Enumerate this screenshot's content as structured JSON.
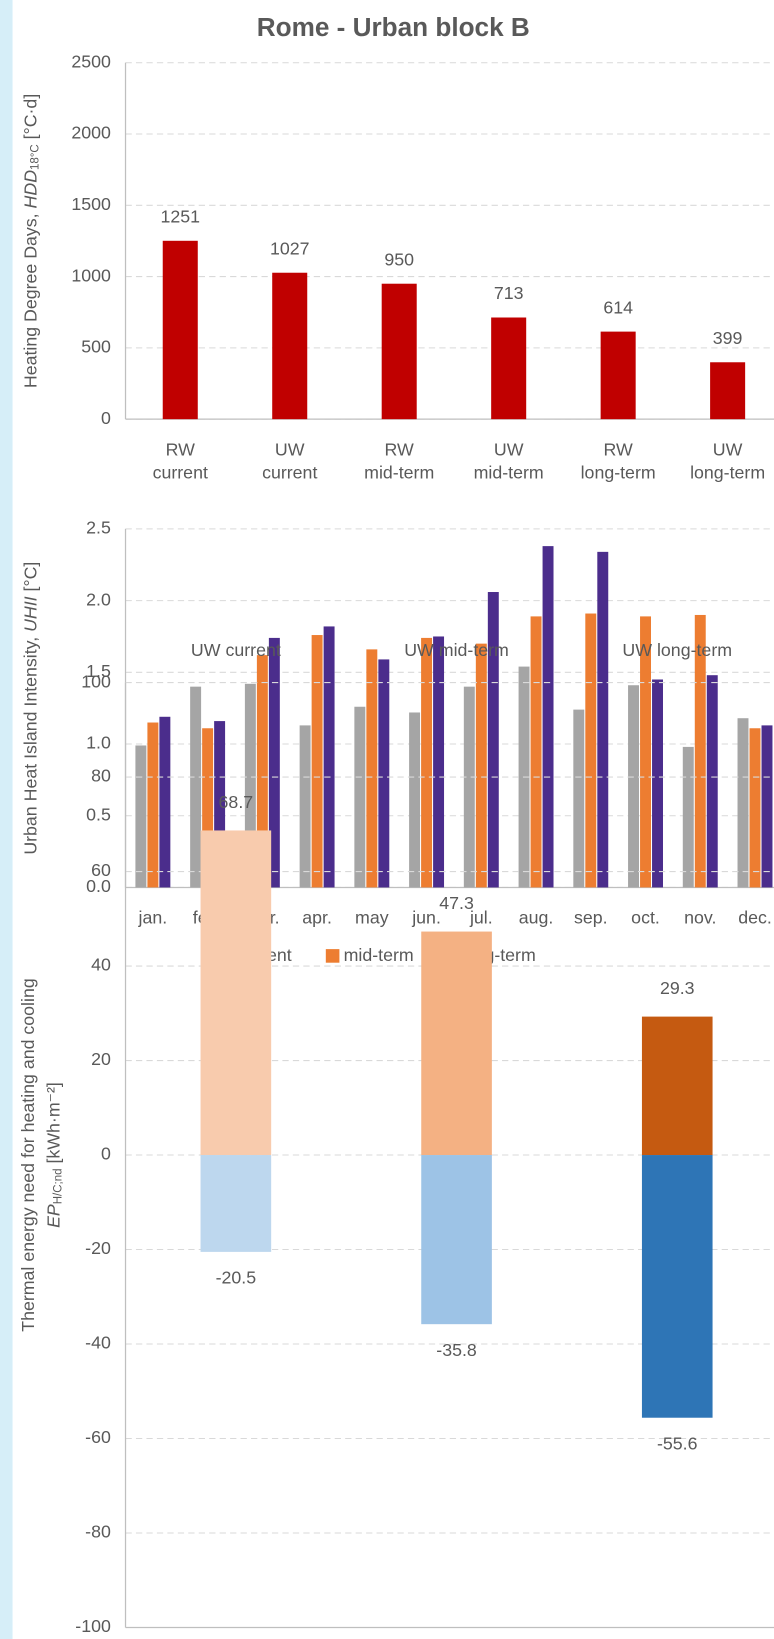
{
  "chart_data": [
    {
      "type": "bar",
      "title": "Rome - Urban block B",
      "ylabel": {
        "text": "Heating Degree Days, ",
        "var": "HDD",
        "sub": "18°C",
        "unit": " [°C·d]"
      },
      "categories": [
        "RW current",
        "UW current",
        "RW mid-term",
        "UW mid-term",
        "RW long-term",
        "UW long-term"
      ],
      "values": [
        1251,
        1027,
        950,
        713,
        614,
        399
      ],
      "color": "#c00000",
      "ylim": [
        0,
        2500
      ],
      "yticks": [
        0,
        500,
        1000,
        1500,
        2000,
        2500
      ],
      "grid": true
    },
    {
      "type": "bar",
      "ylabel": {
        "text": "Urban Heat Island Intensity, ",
        "var": "UHII",
        "unit": " [°C]"
      },
      "categories": [
        "jan.",
        "feb.",
        "mar.",
        "apr.",
        "may",
        "jun.",
        "jul.",
        "aug.",
        "sep.",
        "oct.",
        "nov.",
        "dec."
      ],
      "series": [
        {
          "name": "current",
          "color": "#a5a5a5",
          "values": [
            0.99,
            1.4,
            1.42,
            1.13,
            1.26,
            1.22,
            1.4,
            1.54,
            1.24,
            1.41,
            0.98,
            1.18
          ]
        },
        {
          "name": "mid-term",
          "color": "#ed7d31",
          "values": [
            1.15,
            1.11,
            1.62,
            1.76,
            1.66,
            1.74,
            1.7,
            1.89,
            1.91,
            1.89,
            1.9,
            1.11
          ]
        },
        {
          "name": "long-term",
          "color": "#4b2d8c",
          "values": [
            1.19,
            1.16,
            1.74,
            1.82,
            1.59,
            1.75,
            2.06,
            2.38,
            2.34,
            1.45,
            1.48,
            1.13
          ]
        }
      ],
      "ylim": [
        0,
        2.5
      ],
      "yticks": [
        {
          "value": 0,
          "label": "0.0"
        },
        {
          "value": 0.5,
          "label": "0.5"
        },
        {
          "value": 1,
          "label": "1.0"
        },
        {
          "value": 1.5,
          "label": "1.5"
        },
        {
          "value": 2,
          "label": "2.0"
        },
        {
          "value": 2.5,
          "label": "2.5"
        }
      ],
      "grid": true,
      "legend": "bottom"
    },
    {
      "type": "bar",
      "stacked": true,
      "ylabel": {
        "line1": "Thermal energy need for heating and cooling",
        "var": "EP",
        "sub": "H/C;nd",
        "unit": " [kWh·m⁻²]"
      },
      "categories": [
        "UW current",
        "UW mid-term",
        "UW long-term"
      ],
      "series": [
        {
          "values": [
            68.7,
            47.3,
            29.3
          ],
          "colors": [
            "#f8cbad",
            "#f4b183",
            "#c55a11"
          ]
        },
        {
          "values": [
            -20.5,
            -35.8,
            -55.6
          ],
          "colors": [
            "#bdd7ee",
            "#9dc3e6",
            "#2e75b6"
          ]
        }
      ],
      "ylim": [
        -100,
        100
      ],
      "yticks": [
        -100,
        -80,
        -60,
        -40,
        -20,
        0,
        20,
        40,
        60,
        80,
        100
      ],
      "grid": true
    }
  ]
}
